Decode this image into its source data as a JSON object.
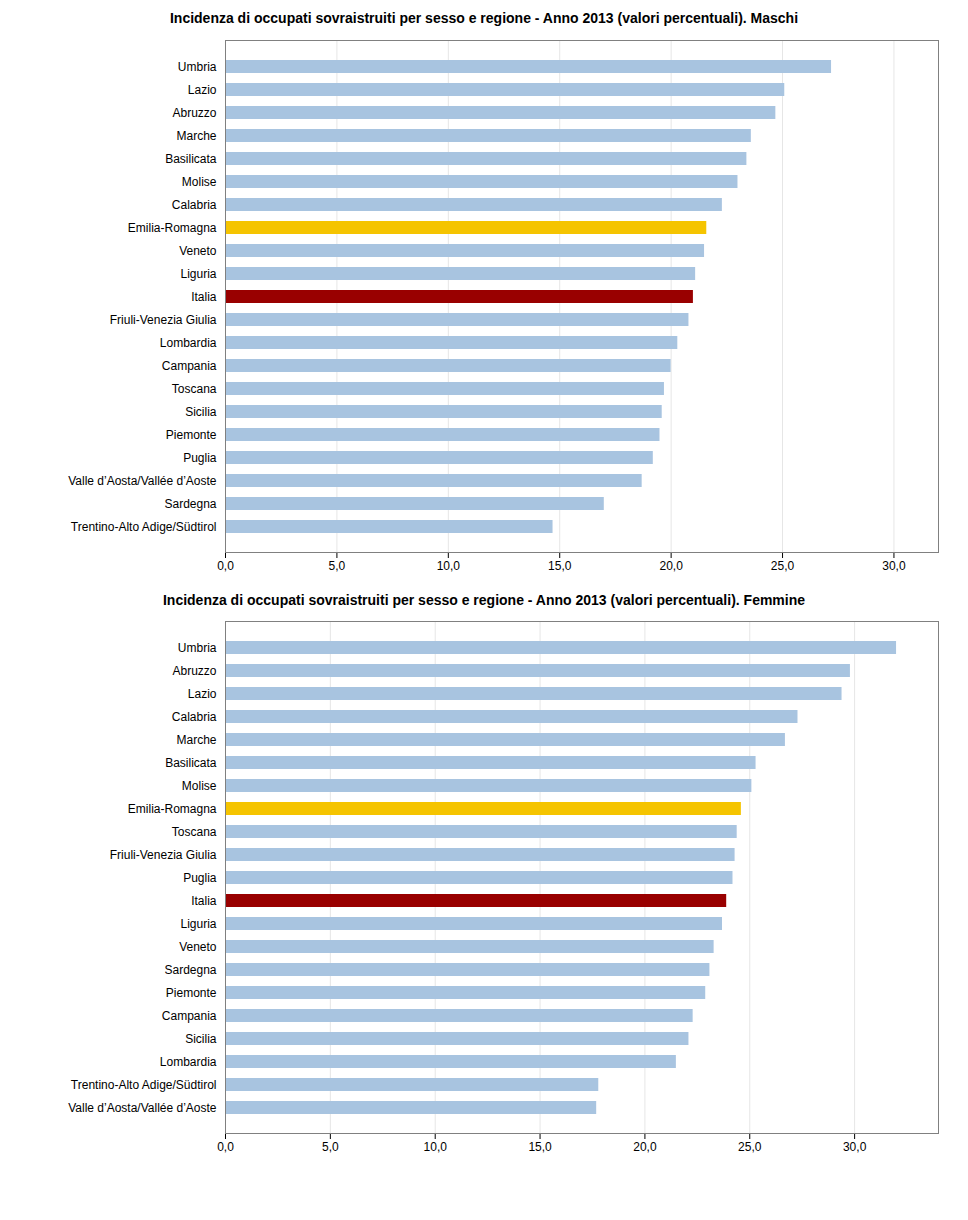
{
  "chart_data": [
    {
      "type": "bar",
      "orientation": "horizontal",
      "title": "Incidenza di occupati sovraistruiti per sesso e regione - Anno 2013  (valori percentuali). Maschi",
      "categories": [
        "Umbria",
        "Lazio",
        "Abruzzo",
        "Marche",
        "Basilicata",
        "Molise",
        "Calabria",
        "Emilia-Romagna",
        "Veneto",
        "Liguria",
        "Italia",
        "Friuli-Venezia Giulia",
        "Lombardia",
        "Campania",
        "Toscana",
        "Sicilia",
        "Piemonte",
        "Puglia",
        "Valle d’Aosta/Vallée d’Aoste",
        "Sardegna",
        "Trentino-Alto Adige/Südtirol"
      ],
      "values": [
        27.2,
        25.1,
        24.7,
        23.6,
        23.4,
        23.0,
        22.3,
        21.6,
        21.5,
        21.1,
        21.0,
        20.8,
        20.3,
        20.0,
        19.7,
        19.6,
        19.5,
        19.2,
        18.7,
        17.0,
        14.7
      ],
      "colors": [
        "#a8c4e0",
        "#a8c4e0",
        "#a8c4e0",
        "#a8c4e0",
        "#a8c4e0",
        "#a8c4e0",
        "#a8c4e0",
        "#f5c400",
        "#a8c4e0",
        "#a8c4e0",
        "#990000",
        "#a8c4e0",
        "#a8c4e0",
        "#a8c4e0",
        "#a8c4e0",
        "#a8c4e0",
        "#a8c4e0",
        "#a8c4e0",
        "#a8c4e0",
        "#a8c4e0",
        "#a8c4e0"
      ],
      "xlim": [
        0,
        32
      ],
      "xticks": [
        {
          "value": 0,
          "label": "0,0"
        },
        {
          "value": 5,
          "label": "5,0"
        },
        {
          "value": 10,
          "label": "10,0"
        },
        {
          "value": 15,
          "label": "15,0"
        },
        {
          "value": 20,
          "label": "20,0"
        },
        {
          "value": 25,
          "label": "25,0"
        },
        {
          "value": 30,
          "label": "30,0"
        }
      ],
      "grid": true
    },
    {
      "type": "bar",
      "orientation": "horizontal",
      "title": "Incidenza di occupati sovraistruiti per sesso e regione - Anno 2013  (valori percentuali). Femmine",
      "categories": [
        "Umbria",
        "Abruzzo",
        "Lazio",
        "Calabria",
        "Marche",
        "Basilicata",
        "Molise",
        "Emilia-Romagna",
        "Toscana",
        "Friuli-Venezia Giulia",
        "Puglia",
        "Italia",
        "Liguria",
        "Veneto",
        "Sardegna",
        "Piemonte",
        "Campania",
        "Sicilia",
        "Lombardia",
        "Trentino-Alto Adige/Südtirol",
        "Valle d’Aosta/Vallée d’Aoste"
      ],
      "values": [
        32.0,
        29.8,
        29.4,
        27.3,
        26.7,
        25.3,
        25.1,
        24.6,
        24.4,
        24.3,
        24.2,
        23.9,
        23.7,
        23.3,
        23.1,
        22.9,
        22.3,
        22.1,
        21.5,
        17.8,
        17.7
      ],
      "colors": [
        "#a8c4e0",
        "#a8c4e0",
        "#a8c4e0",
        "#a8c4e0",
        "#a8c4e0",
        "#a8c4e0",
        "#a8c4e0",
        "#f5c400",
        "#a8c4e0",
        "#a8c4e0",
        "#a8c4e0",
        "#990000",
        "#a8c4e0",
        "#a8c4e0",
        "#a8c4e0",
        "#a8c4e0",
        "#a8c4e0",
        "#a8c4e0",
        "#a8c4e0",
        "#a8c4e0",
        "#a8c4e0"
      ],
      "xlim": [
        0,
        34
      ],
      "xticks": [
        {
          "value": 0,
          "label": "0,0"
        },
        {
          "value": 5,
          "label": "5,0"
        },
        {
          "value": 10,
          "label": "10,0"
        },
        {
          "value": 15,
          "label": "15,0"
        },
        {
          "value": 20,
          "label": "20,0"
        },
        {
          "value": 25,
          "label": "25,0"
        },
        {
          "value": 30,
          "label": "30,0"
        }
      ],
      "grid": true
    }
  ]
}
